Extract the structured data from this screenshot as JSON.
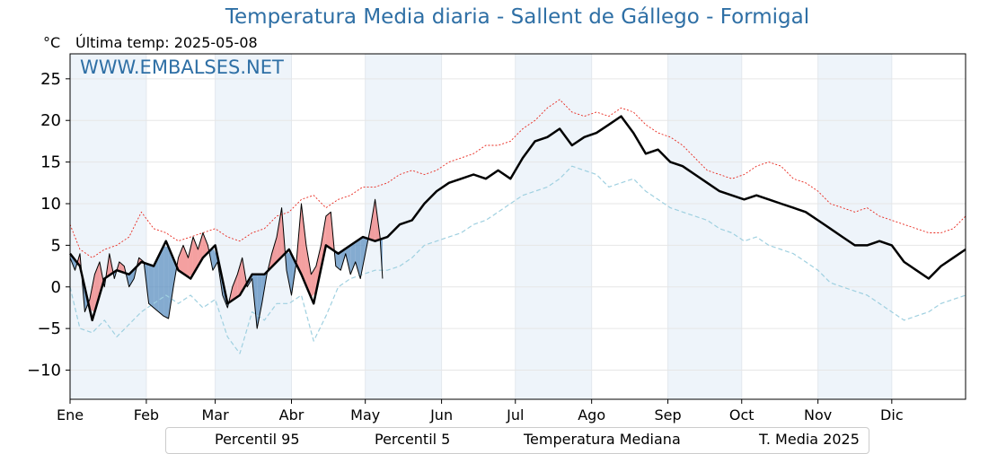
{
  "header": {
    "title": "Temperatura Media diaria - Sallent de Gállego - Formigal",
    "unit": "°C",
    "last_temp": "Última temp: 2025-05-08",
    "watermark": "WWW.EMBALSES.NET"
  },
  "colors": {
    "p95": "#e8281e",
    "p5": "#9fd0e0",
    "median": "#000000",
    "current": "#000000",
    "above": "#f08080",
    "below": "#5b8fc0",
    "band": "#eef4fa",
    "title": "#2e6fa5"
  },
  "legend": {
    "p95": "Percentil 95",
    "p5": "Percentil 5",
    "median": "Temperatura Mediana",
    "current": "T. Media 2025"
  },
  "chart_data": {
    "type": "line",
    "title": "Temperatura Media diaria - Sallent de Gállego - Formigal",
    "ylabel": "°C",
    "xlim": [
      1,
      365
    ],
    "ylim": [
      -13.5,
      28
    ],
    "yticks": [
      -10,
      -5,
      0,
      5,
      10,
      15,
      20,
      25
    ],
    "grid": true,
    "legend_position": "bottom",
    "months": [
      {
        "label": "Ene",
        "start_day": 1
      },
      {
        "label": "Feb",
        "start_day": 32
      },
      {
        "label": "Mar",
        "start_day": 60
      },
      {
        "label": "Abr",
        "start_day": 91
      },
      {
        "label": "May",
        "start_day": 121
      },
      {
        "label": "Jun",
        "start_day": 152
      },
      {
        "label": "Jul",
        "start_day": 182
      },
      {
        "label": "Ago",
        "start_day": 213
      },
      {
        "label": "Sep",
        "start_day": 244
      },
      {
        "label": "Oct",
        "start_day": 274
      },
      {
        "label": "Nov",
        "start_day": 305
      },
      {
        "label": "Dic",
        "start_day": 335
      }
    ],
    "series": [
      {
        "name": "Percentil 95",
        "style": "dotted",
        "x": [
          1,
          5,
          10,
          15,
          20,
          25,
          30,
          35,
          40,
          45,
          50,
          55,
          60,
          65,
          70,
          75,
          80,
          85,
          90,
          95,
          100,
          105,
          110,
          115,
          120,
          125,
          130,
          135,
          140,
          145,
          150,
          155,
          160,
          165,
          170,
          175,
          180,
          185,
          190,
          195,
          200,
          205,
          210,
          215,
          220,
          225,
          230,
          235,
          240,
          245,
          250,
          255,
          260,
          265,
          270,
          275,
          280,
          285,
          290,
          295,
          300,
          305,
          310,
          315,
          320,
          325,
          330,
          335,
          340,
          345,
          350,
          355,
          360,
          365
        ],
        "y": [
          7.5,
          4.5,
          3.5,
          4.5,
          5,
          6,
          9,
          7,
          6.5,
          5.5,
          6,
          6.5,
          7,
          6,
          5.5,
          6.5,
          7,
          8.5,
          9,
          10.5,
          11,
          9.5,
          10.5,
          11,
          12,
          12,
          12.5,
          13.5,
          14,
          13.5,
          14,
          15,
          15.5,
          16,
          17,
          17,
          17.5,
          19,
          20,
          21.5,
          22.5,
          21,
          20.5,
          21,
          20.5,
          21.5,
          21,
          19.5,
          18.5,
          18,
          17,
          15.5,
          14,
          13.5,
          13,
          13.5,
          14.5,
          15,
          14.5,
          13,
          12.5,
          11.5,
          10,
          9.5,
          9,
          9.5,
          8.5,
          8,
          7.5,
          7,
          6.5,
          6.5,
          7,
          8.5
        ]
      },
      {
        "name": "Percentil 5",
        "style": "dashed",
        "x": [
          1,
          5,
          10,
          15,
          20,
          25,
          30,
          35,
          40,
          45,
          50,
          55,
          60,
          65,
          70,
          75,
          80,
          85,
          90,
          95,
          100,
          105,
          110,
          115,
          120,
          125,
          130,
          135,
          140,
          145,
          150,
          155,
          160,
          165,
          170,
          175,
          180,
          185,
          190,
          195,
          200,
          205,
          210,
          215,
          220,
          225,
          230,
          235,
          240,
          245,
          250,
          255,
          260,
          265,
          270,
          275,
          280,
          285,
          290,
          295,
          300,
          305,
          310,
          315,
          320,
          325,
          330,
          335,
          340,
          345,
          350,
          355,
          360,
          365
        ],
        "y": [
          0,
          -5,
          -5.5,
          -4,
          -6,
          -4.5,
          -3,
          -2,
          -1,
          -2,
          -1,
          -2.5,
          -1.5,
          -6,
          -8,
          -3,
          -4,
          -2,
          -2,
          -1,
          -6.5,
          -3.5,
          0,
          1,
          1.5,
          2,
          2,
          2.5,
          3.5,
          5,
          5.5,
          6,
          6.5,
          7.5,
          8,
          9,
          10,
          11,
          11.5,
          12,
          13,
          14.5,
          14,
          13.5,
          12,
          12.5,
          13,
          11.5,
          10.5,
          9.5,
          9,
          8.5,
          8,
          7,
          6.5,
          5.5,
          6,
          5,
          4.5,
          4,
          3,
          2,
          0.5,
          0,
          -0.5,
          -1,
          -2,
          -3,
          -4,
          -3.5,
          -3,
          -2,
          -1.5,
          -1
        ]
      },
      {
        "name": "Temperatura Mediana",
        "style": "solid-thick",
        "x": [
          1,
          5,
          10,
          15,
          20,
          25,
          30,
          35,
          40,
          45,
          50,
          55,
          60,
          65,
          70,
          75,
          80,
          85,
          90,
          95,
          100,
          105,
          110,
          115,
          120,
          125,
          130,
          135,
          140,
          145,
          150,
          155,
          160,
          165,
          170,
          175,
          180,
          185,
          190,
          195,
          200,
          205,
          210,
          215,
          220,
          225,
          230,
          235,
          240,
          245,
          250,
          255,
          260,
          265,
          270,
          275,
          280,
          285,
          290,
          295,
          300,
          305,
          310,
          315,
          320,
          325,
          330,
          335,
          340,
          345,
          350,
          355,
          360,
          365
        ],
        "y": [
          4,
          2.5,
          -4,
          1,
          2,
          1.5,
          3,
          2.5,
          5.5,
          2,
          1,
          3.5,
          5,
          -2,
          -1,
          1.5,
          1.5,
          3,
          4.5,
          1.5,
          -2,
          5,
          4,
          5,
          6,
          5.5,
          6,
          7.5,
          8,
          10,
          11.5,
          12.5,
          13,
          13.5,
          13,
          14,
          13,
          15.5,
          17.5,
          18,
          19,
          17,
          18,
          18.5,
          19.5,
          20.5,
          18.5,
          16,
          16.5,
          15,
          14.5,
          13.5,
          12.5,
          11.5,
          11,
          10.5,
          11,
          10.5,
          10,
          9.5,
          9,
          8,
          7,
          6,
          5,
          5,
          5.5,
          5,
          3,
          2,
          1,
          2.5,
          3.5,
          4.5
        ]
      },
      {
        "name": "T. Media 2025",
        "style": "solid-thin",
        "x": [
          1,
          3,
          5,
          7,
          9,
          11,
          13,
          15,
          17,
          19,
          21,
          23,
          25,
          27,
          29,
          31,
          33,
          35,
          37,
          39,
          41,
          43,
          45,
          47,
          49,
          51,
          53,
          55,
          57,
          59,
          61,
          63,
          65,
          67,
          69,
          71,
          73,
          75,
          77,
          79,
          81,
          83,
          85,
          87,
          89,
          91,
          93,
          95,
          97,
          99,
          101,
          103,
          105,
          107,
          109,
          111,
          113,
          115,
          117,
          119,
          121,
          123,
          125,
          127,
          128
        ],
        "y": [
          3.5,
          2,
          4,
          -3,
          -1.5,
          1.5,
          3,
          0,
          4,
          1,
          3,
          2.5,
          0,
          1,
          3.5,
          3,
          -2,
          -2.5,
          -3,
          -3.5,
          -3.8,
          0,
          3.5,
          5,
          3.5,
          6,
          4.5,
          6.5,
          5,
          2,
          3,
          -1,
          -2.5,
          0,
          1.5,
          3.5,
          0,
          1,
          -5,
          -2,
          1.5,
          4,
          6,
          9.5,
          2,
          -1,
          3,
          10,
          5,
          1.5,
          2.5,
          5,
          8.5,
          9,
          2.5,
          2,
          4,
          1.5,
          3,
          1,
          4,
          7,
          10.5,
          6,
          1
        ]
      }
    ]
  }
}
